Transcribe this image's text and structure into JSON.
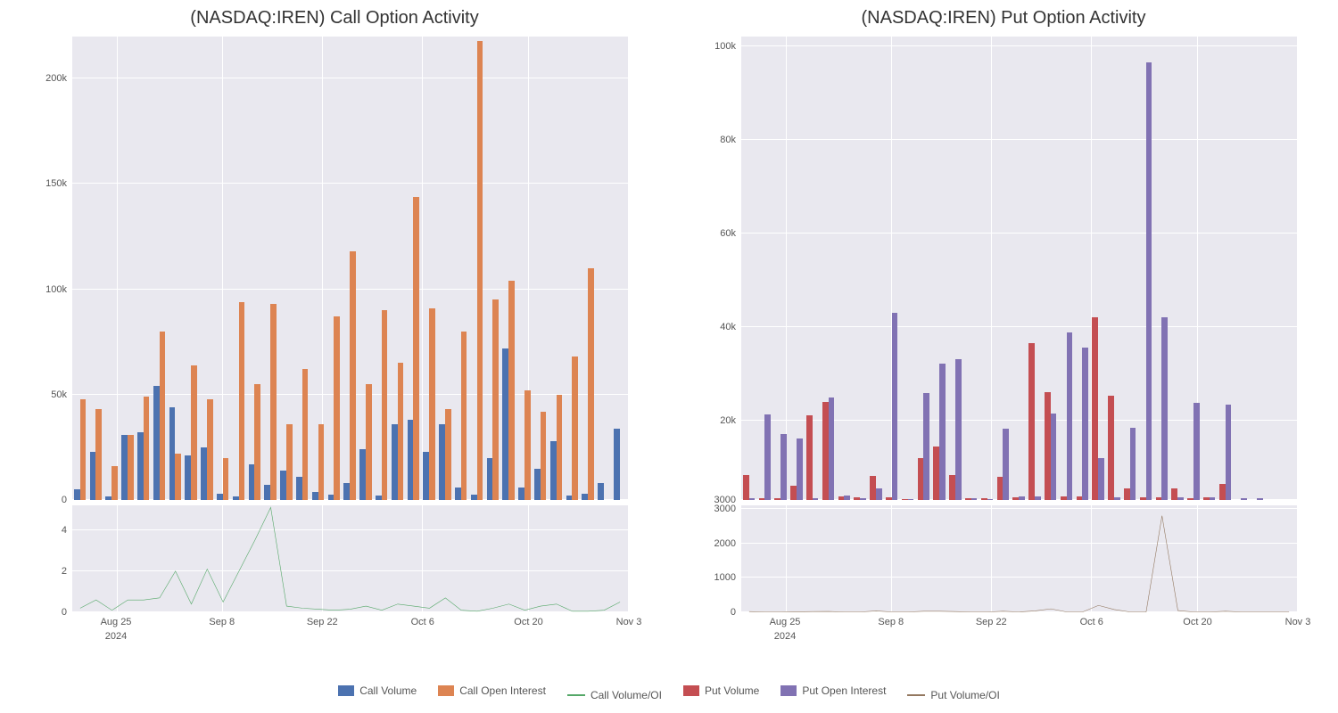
{
  "left": {
    "title": "(NASDAQ:IREN) Call Option Activity",
    "type": "bar+line",
    "background_color": "#e9e8ef",
    "grid_color": "#ffffff",
    "upper": {
      "ylim": [
        0,
        220000
      ],
      "yticks": [
        0,
        50000,
        100000,
        150000,
        200000
      ],
      "ytick_labels": [
        "0",
        "50k",
        "100k",
        "150k",
        "200k"
      ],
      "series": [
        {
          "name": "Call Volume",
          "color": "#4c72b0",
          "values": [
            5000,
            23000,
            1500,
            31000,
            32000,
            54000,
            44000,
            21000,
            25000,
            3000,
            1500,
            17000,
            7000,
            14000,
            11000,
            4000,
            2500,
            8000,
            24000,
            2000,
            36000,
            38000,
            23000,
            36000,
            6000,
            2500,
            20000,
            72000,
            6000,
            15000,
            28000,
            2000,
            3000,
            8000,
            34000
          ]
        },
        {
          "name": "Call Open Interest",
          "color": "#dd8452",
          "values": [
            48000,
            43000,
            16000,
            31000,
            49000,
            80000,
            22000,
            64000,
            48000,
            20000,
            94000,
            55000,
            93000,
            36000,
            62000,
            36000,
            87000,
            118000,
            55000,
            90000,
            65000,
            144000,
            91000,
            43000,
            80000,
            218000,
            95000,
            104000,
            52000,
            42000,
            50000,
            68000,
            110000,
            0,
            0
          ]
        }
      ]
    },
    "lower": {
      "ylim": [
        0,
        5.2
      ],
      "yticks": [
        0,
        2,
        4
      ],
      "ytick_labels": [
        "0",
        "2",
        "4"
      ],
      "series": {
        "name": "Call Volume/OI",
        "color": "#55a868",
        "values": [
          0.2,
          0.6,
          0.1,
          0.6,
          0.6,
          0.7,
          2.0,
          0.4,
          2.1,
          0.5,
          2.0,
          3.5,
          5.1,
          0.3,
          0.2,
          0.15,
          0.1,
          0.15,
          0.3,
          0.1,
          0.4,
          0.3,
          0.2,
          0.7,
          0.1,
          0.05,
          0.2,
          0.4,
          0.1,
          0.3,
          0.4,
          0.05,
          0.05,
          0.1,
          0.5
        ]
      }
    },
    "xticks": [
      {
        "pos": 0.08,
        "label": "Aug 25",
        "sub": "2024"
      },
      {
        "pos": 0.27,
        "label": "Sep 8",
        "sub": ""
      },
      {
        "pos": 0.45,
        "label": "Sep 22",
        "sub": ""
      },
      {
        "pos": 0.63,
        "label": "Oct 6",
        "sub": ""
      },
      {
        "pos": 0.82,
        "label": "Oct 20",
        "sub": ""
      },
      {
        "pos": 1.0,
        "label": "Nov 3",
        "sub": ""
      }
    ]
  },
  "right": {
    "title": "(NASDAQ:IREN) Put Option Activity",
    "type": "bar+line",
    "background_color": "#e9e8ef",
    "grid_color": "#ffffff",
    "upper": {
      "ylim": [
        3000,
        102000
      ],
      "yticks": [
        3000,
        20000,
        40000,
        60000,
        80000,
        100000
      ],
      "ytick_labels": [
        "3000",
        "20k",
        "40k",
        "60k",
        "80k",
        "100k"
      ],
      "series": [
        {
          "name": "Put Volume",
          "color": "#c44e52",
          "values": [
            8400,
            3400,
            3400,
            6000,
            21000,
            24000,
            3800,
            3600,
            8200,
            3600,
            3200,
            12000,
            14500,
            8300,
            3400,
            3400,
            7900,
            3600,
            36500,
            26000,
            3800,
            3700,
            42000,
            25200,
            5400,
            3600,
            3600,
            5400,
            3400,
            3500,
            6400,
            0,
            0,
            0,
            0
          ]
        },
        {
          "name": "Put Open Interest",
          "color": "#8172b3",
          "values": [
            3300,
            21200,
            17000,
            16200,
            3300,
            24900,
            3900,
            3300,
            5500,
            43000,
            3200,
            25800,
            32200,
            33000,
            3300,
            3200,
            18200,
            3700,
            3800,
            21400,
            38800,
            35500,
            12000,
            3600,
            18500,
            96500,
            42000,
            3500,
            23800,
            3600,
            23400,
            3300,
            3400,
            0,
            0
          ]
        }
      ]
    },
    "lower": {
      "ylim": [
        0,
        3100
      ],
      "yticks": [
        0,
        1000,
        2000,
        3000
      ],
      "ytick_labels": [
        "0",
        "1000",
        "2000",
        "3000"
      ],
      "series": {
        "name": "Put Volume/OI",
        "color": "#937860",
        "values": [
          20,
          10,
          10,
          15,
          20,
          25,
          10,
          10,
          40,
          10,
          10,
          30,
          30,
          20,
          10,
          10,
          30,
          10,
          40,
          100,
          10,
          10,
          200,
          80,
          10,
          10,
          2800,
          50,
          10,
          10,
          30,
          10,
          10,
          10,
          10
        ]
      }
    },
    "xticks": [
      {
        "pos": 0.08,
        "label": "Aug 25",
        "sub": "2024"
      },
      {
        "pos": 0.27,
        "label": "Sep 8",
        "sub": ""
      },
      {
        "pos": 0.45,
        "label": "Sep 22",
        "sub": ""
      },
      {
        "pos": 0.63,
        "label": "Oct 6",
        "sub": ""
      },
      {
        "pos": 0.82,
        "label": "Oct 20",
        "sub": ""
      },
      {
        "pos": 1.0,
        "label": "Nov 3",
        "sub": ""
      }
    ]
  },
  "legend": [
    {
      "type": "swatch",
      "color": "#4c72b0",
      "label": "Call Volume"
    },
    {
      "type": "swatch",
      "color": "#dd8452",
      "label": "Call Open Interest"
    },
    {
      "type": "line",
      "color": "#55a868",
      "label": "Call Volume/OI"
    },
    {
      "type": "swatch",
      "color": "#c44e52",
      "label": "Put Volume"
    },
    {
      "type": "swatch",
      "color": "#8172b3",
      "label": "Put Open Interest"
    },
    {
      "type": "line",
      "color": "#937860",
      "label": "Put Volume/OI"
    }
  ]
}
